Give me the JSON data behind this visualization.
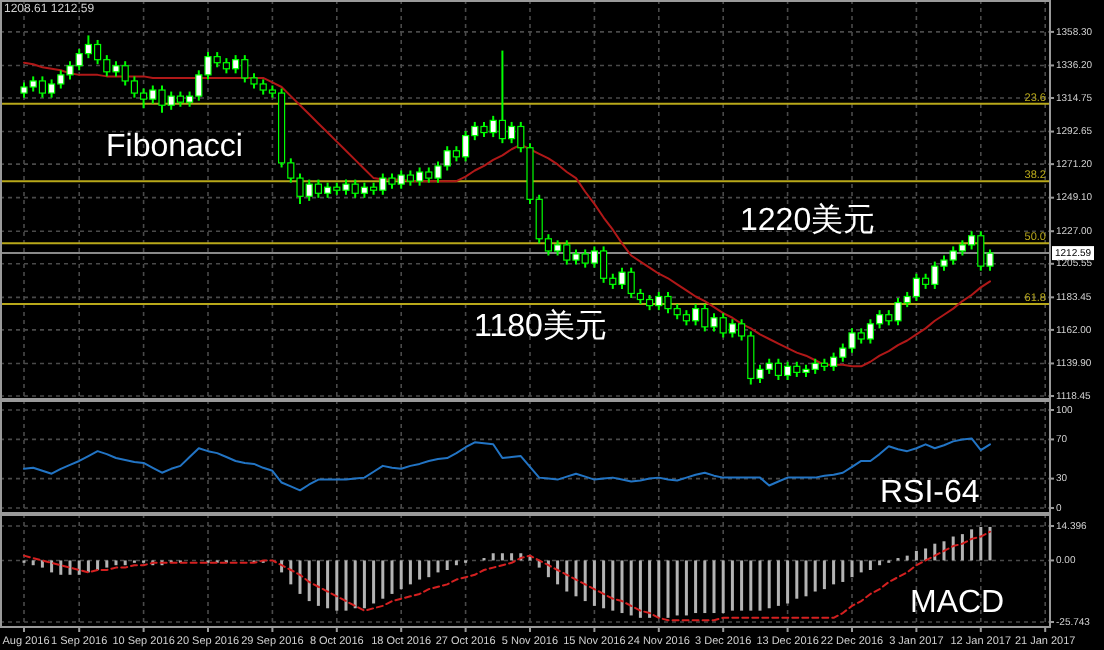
{
  "chart_data": [
    {
      "type": "candlestick",
      "color": "#00ff00",
      "ohlc": [
        [
          1318,
          1325,
          1315,
          1322
        ],
        [
          1322,
          1329,
          1319,
          1326
        ],
        [
          1326,
          1329,
          1315,
          1318
        ],
        [
          1318,
          1327,
          1315,
          1324
        ],
        [
          1324,
          1333,
          1321,
          1330
        ],
        [
          1330,
          1339,
          1327,
          1336
        ],
        [
          1336,
          1347,
          1333,
          1344
        ],
        [
          1344,
          1356,
          1341,
          1350
        ],
        [
          1350,
          1353,
          1337,
          1340
        ],
        [
          1340,
          1343,
          1329,
          1332
        ],
        [
          1332,
          1339,
          1329,
          1336
        ],
        [
          1336,
          1339,
          1323,
          1326
        ],
        [
          1326,
          1329,
          1315,
          1318
        ],
        [
          1318,
          1321,
          1308,
          1314
        ],
        [
          1314,
          1323,
          1311,
          1320
        ],
        [
          1320,
          1323,
          1305,
          1310
        ],
        [
          1310,
          1319,
          1307,
          1316
        ],
        [
          1316,
          1319,
          1309,
          1312
        ],
        [
          1312,
          1319,
          1309,
          1316
        ],
        [
          1316,
          1333,
          1313,
          1330
        ],
        [
          1330,
          1345,
          1327,
          1342
        ],
        [
          1342,
          1345,
          1335,
          1338
        ],
        [
          1338,
          1341,
          1331,
          1334
        ],
        [
          1334,
          1343,
          1331,
          1340
        ],
        [
          1340,
          1343,
          1325,
          1328
        ],
        [
          1328,
          1331,
          1321,
          1324
        ],
        [
          1324,
          1327,
          1317,
          1320
        ],
        [
          1320,
          1323,
          1315,
          1318
        ],
        [
          1318,
          1321,
          1269,
          1272
        ],
        [
          1272,
          1275,
          1259,
          1262
        ],
        [
          1262,
          1265,
          1245,
          1250
        ],
        [
          1250,
          1261,
          1247,
          1258
        ],
        [
          1258,
          1261,
          1249,
          1252
        ],
        [
          1252,
          1259,
          1249,
          1256
        ],
        [
          1256,
          1259,
          1251,
          1254
        ],
        [
          1254,
          1261,
          1251,
          1258
        ],
        [
          1258,
          1261,
          1249,
          1252
        ],
        [
          1252,
          1259,
          1249,
          1256
        ],
        [
          1256,
          1259,
          1251,
          1254
        ],
        [
          1254,
          1265,
          1251,
          1262
        ],
        [
          1262,
          1265,
          1255,
          1258
        ],
        [
          1258,
          1267,
          1255,
          1264
        ],
        [
          1264,
          1267,
          1257,
          1260
        ],
        [
          1260,
          1269,
          1257,
          1266
        ],
        [
          1266,
          1269,
          1259,
          1262
        ],
        [
          1262,
          1273,
          1259,
          1270
        ],
        [
          1270,
          1283,
          1267,
          1280
        ],
        [
          1280,
          1283,
          1273,
          1276
        ],
        [
          1276,
          1293,
          1273,
          1290
        ],
        [
          1290,
          1299,
          1287,
          1296
        ],
        [
          1296,
          1299,
          1289,
          1292
        ],
        [
          1292,
          1303,
          1289,
          1300
        ],
        [
          1300,
          1346,
          1285,
          1288
        ],
        [
          1288,
          1299,
          1285,
          1296
        ],
        [
          1296,
          1299,
          1279,
          1282
        ],
        [
          1282,
          1285,
          1245,
          1248
        ],
        [
          1248,
          1251,
          1219,
          1222
        ],
        [
          1222,
          1225,
          1211,
          1214
        ],
        [
          1214,
          1221,
          1211,
          1218
        ],
        [
          1218,
          1221,
          1205,
          1208
        ],
        [
          1208,
          1215,
          1205,
          1212
        ],
        [
          1212,
          1215,
          1203,
          1206
        ],
        [
          1206,
          1217,
          1203,
          1214
        ],
        [
          1214,
          1217,
          1193,
          1196
        ],
        [
          1196,
          1199,
          1189,
          1192
        ],
        [
          1192,
          1203,
          1189,
          1200
        ],
        [
          1200,
          1203,
          1183,
          1186
        ],
        [
          1186,
          1189,
          1179,
          1182
        ],
        [
          1182,
          1185,
          1175,
          1178
        ],
        [
          1178,
          1187,
          1175,
          1184
        ],
        [
          1184,
          1187,
          1173,
          1176
        ],
        [
          1176,
          1179,
          1169,
          1172
        ],
        [
          1172,
          1175,
          1165,
          1168
        ],
        [
          1168,
          1179,
          1165,
          1176
        ],
        [
          1176,
          1179,
          1161,
          1164
        ],
        [
          1164,
          1173,
          1161,
          1170
        ],
        [
          1170,
          1173,
          1157,
          1160
        ],
        [
          1160,
          1169,
          1157,
          1166
        ],
        [
          1166,
          1169,
          1155,
          1158
        ],
        [
          1158,
          1161,
          1126,
          1130
        ],
        [
          1130,
          1139,
          1127,
          1136
        ],
        [
          1136,
          1143,
          1133,
          1140
        ],
        [
          1140,
          1143,
          1129,
          1132
        ],
        [
          1132,
          1141,
          1129,
          1138
        ],
        [
          1138,
          1141,
          1131,
          1134
        ],
        [
          1134,
          1139,
          1131,
          1136
        ],
        [
          1136,
          1143,
          1133,
          1140
        ],
        [
          1140,
          1143,
          1135,
          1138
        ],
        [
          1138,
          1147,
          1135,
          1144
        ],
        [
          1144,
          1153,
          1141,
          1150
        ],
        [
          1150,
          1163,
          1147,
          1160
        ],
        [
          1160,
          1163,
          1153,
          1156
        ],
        [
          1156,
          1169,
          1153,
          1166
        ],
        [
          1166,
          1175,
          1163,
          1172
        ],
        [
          1172,
          1175,
          1165,
          1168
        ],
        [
          1168,
          1183,
          1165,
          1180
        ],
        [
          1180,
          1187,
          1177,
          1184
        ],
        [
          1184,
          1199,
          1181,
          1196
        ],
        [
          1196,
          1199,
          1189,
          1192
        ],
        [
          1192,
          1207,
          1189,
          1204
        ],
        [
          1204,
          1211,
          1201,
          1208
        ],
        [
          1208,
          1217,
          1205,
          1214
        ],
        [
          1214,
          1221,
          1211,
          1218
        ],
        [
          1218,
          1227,
          1215,
          1224
        ],
        [
          1224,
          1227,
          1201,
          1204
        ],
        [
          1204,
          1215,
          1201,
          1212.59
        ],
        null,
        null,
        null,
        null,
        null,
        null
      ],
      "series": [
        {
          "type": "line",
          "color": "#b01818",
          "values": [
            1338,
            1337,
            1335,
            1334,
            1333,
            1331,
            1330,
            1330,
            1330,
            1329,
            1329,
            1329,
            1329,
            1329,
            1328,
            1328,
            1328,
            1328,
            1328,
            1328,
            1328,
            1328,
            1328,
            1328,
            1328,
            1328,
            1328,
            1325,
            1322,
            1316,
            1310,
            1304,
            1298,
            1292,
            1286,
            1280,
            1274,
            1268,
            1262,
            1261,
            1261,
            1261,
            1260,
            1260,
            1260,
            1260,
            1260,
            1260,
            1263,
            1267,
            1270,
            1274,
            1277,
            1281,
            1284,
            1281,
            1278,
            1275,
            1271,
            1266,
            1262,
            1253,
            1245,
            1236,
            1228,
            1219,
            1211,
            1207,
            1203,
            1199,
            1196,
            1192,
            1188,
            1184,
            1181,
            1177,
            1173,
            1170,
            1166,
            1163,
            1159,
            1156,
            1153,
            1150,
            1147,
            1145,
            1142,
            1139,
            1139,
            1139,
            1138,
            1138,
            1141,
            1145,
            1148,
            1152,
            1155,
            1159,
            1163,
            1168,
            1172,
            1176,
            1181,
            1185,
            1190,
            1194,
            null,
            null,
            null,
            null,
            null,
            null
          ]
        }
      ],
      "ylim": [
        1118.45,
        1378
      ],
      "yticks": [
        1118.45,
        {
          "value": 1139.9,
          "label": "1139.90"
        },
        {
          "value": 1162,
          "label": "1162.00"
        },
        1183.45,
        1205.55,
        {
          "value": 1227,
          "label": "1227.00"
        },
        {
          "value": 1249.1,
          "label": "1249.10"
        },
        {
          "value": 1271.2,
          "label": "1271.20"
        },
        1292.65,
        1314.75,
        {
          "value": 1336.2,
          "label": "1336.20"
        },
        {
          "value": 1358.3,
          "label": "1358.30"
        }
      ],
      "ref_lines": [
        {
          "axis": "y",
          "value": 1311,
          "color": "#b8a81a"
        },
        {
          "axis": "y",
          "value": 1260,
          "color": "#b8a81a"
        },
        {
          "axis": "y",
          "value": 1219,
          "color": "#b8a81a"
        },
        {
          "axis": "y",
          "value": 1179,
          "color": "#b8a81a"
        },
        {
          "axis": "y",
          "value": 1212.59,
          "label": "1212.59",
          "color": "#8a8a8a"
        }
      ],
      "annotations": [
        "1208.61 1212.59",
        "Fibonacci",
        "1220美元",
        "1180美元",
        {
          "text": "23.6",
          "y": 1311
        },
        {
          "text": "38.2",
          "y": 1260
        },
        {
          "text": "50.0",
          "y": 1219
        },
        {
          "text": "61.8",
          "y": 1179
        }
      ],
      "grid": true,
      "tick_labels": "y"
    },
    {
      "type": "line",
      "series": [
        {
          "color": "#2274c4",
          "values": [
            40,
            41,
            38,
            35,
            40,
            44,
            48,
            53,
            58,
            55,
            51,
            49,
            47,
            46,
            41,
            36,
            40,
            43,
            52,
            61,
            58,
            56,
            52,
            48,
            46,
            45,
            41,
            38,
            26,
            22,
            18,
            24,
            29,
            29,
            29,
            29,
            30,
            31,
            37,
            43,
            41,
            40,
            43,
            45,
            48,
            50,
            51,
            56,
            62,
            67,
            66,
            65,
            51,
            52,
            53,
            42,
            31,
            30,
            29,
            32,
            35,
            32,
            29,
            30,
            31,
            29,
            27,
            28,
            30,
            31,
            29,
            28,
            31,
            34,
            36,
            33,
            31,
            31,
            31,
            31,
            31,
            23,
            27,
            31,
            31,
            31,
            31,
            33,
            34,
            36,
            42,
            48,
            48,
            55,
            63,
            60,
            58,
            61,
            65,
            61,
            64,
            68,
            70,
            71,
            59,
            65,
            null,
            null,
            null,
            null,
            null,
            null
          ]
        }
      ],
      "ylim": [
        0,
        100
      ],
      "yticks": [
        0,
        30,
        70,
        100
      ],
      "annotations": [
        "RSI-64"
      ],
      "grid": true,
      "tick_labels": "y"
    },
    {
      "type": "bar",
      "categories": [
        "Aug 2016",
        null,
        null,
        null,
        null,
        null,
        "1 Sep 2016",
        null,
        null,
        null,
        null,
        null,
        null,
        "10 Sep 2016",
        null,
        null,
        null,
        null,
        null,
        null,
        "20 Sep 2016",
        null,
        null,
        null,
        null,
        null,
        null,
        "29 Sep 2016",
        null,
        null,
        null,
        null,
        null,
        null,
        "8 Oct 2016",
        null,
        null,
        null,
        null,
        null,
        null,
        "18 Oct 2016",
        null,
        null,
        null,
        null,
        null,
        null,
        "27 Oct 2016",
        null,
        null,
        null,
        null,
        null,
        null,
        "5 Nov 2016",
        null,
        null,
        null,
        null,
        null,
        null,
        "15 Nov 2016",
        null,
        null,
        null,
        null,
        null,
        null,
        "24 Nov 2016",
        null,
        null,
        null,
        null,
        null,
        null,
        "3 Dec 2016",
        null,
        null,
        null,
        null,
        null,
        null,
        "13 Dec 2016",
        null,
        null,
        null,
        null,
        null,
        null,
        "22 Dec 2016",
        null,
        null,
        null,
        null,
        null,
        null,
        "3 Jan 2017",
        null,
        null,
        null,
        null,
        null,
        null,
        "12 Jan 2017",
        null,
        null,
        null,
        null,
        null,
        null,
        "21 Jan 2017"
      ],
      "series": [
        {
          "color": "#b4b4b4",
          "values": [
            -1,
            -2,
            -3,
            -5,
            -6,
            -6,
            -6,
            -5,
            -4,
            -3,
            -2,
            -2,
            -1,
            -1,
            -2,
            -2,
            -1,
            -1,
            0,
            0,
            -1,
            -1,
            -1,
            0,
            0,
            -1,
            -1,
            0,
            -5,
            -10,
            -14,
            -17,
            -19,
            -20,
            -21,
            -21,
            -20,
            -20,
            -18,
            -16,
            -14,
            -12,
            -10,
            -8,
            -7,
            -5,
            -4,
            -2,
            -1,
            0,
            1,
            3,
            3,
            3,
            3,
            2,
            -3,
            -7,
            -10,
            -13,
            -15,
            -17,
            -19,
            -20,
            -21,
            -22,
            -23,
            -24,
            -24,
            -24,
            -24,
            -23,
            -23,
            -22,
            -22,
            -22,
            -22,
            -21,
            -21,
            -21,
            -21,
            -20,
            -19,
            -18,
            -16,
            -15,
            -13,
            -12,
            -10,
            -9,
            -7,
            -5,
            -4,
            -2,
            -1,
            1,
            2,
            4,
            5,
            7,
            8,
            10,
            11,
            13,
            14,
            14,
            null,
            null,
            null,
            null,
            null,
            null
          ]
        },
        {
          "type": "line",
          "color": "#d42020",
          "line_style": "dashed",
          "values": [
            2,
            1,
            0,
            -1,
            -2,
            -3,
            -4,
            -5,
            -4,
            -4,
            -3,
            -3,
            -2,
            -2,
            -1,
            -1,
            -1,
            -1,
            -1,
            -1,
            -1,
            -1,
            -1,
            -1,
            -1,
            -1,
            0,
            0,
            -2,
            -4,
            -6,
            -9,
            -11,
            -13,
            -15,
            -17,
            -19,
            -21,
            -20,
            -19,
            -17,
            -16,
            -15,
            -14,
            -12,
            -11,
            -10,
            -8,
            -7,
            -6,
            -4,
            -3,
            -2,
            -1,
            1,
            2,
            0,
            -2,
            -4,
            -6,
            -8,
            -10,
            -12,
            -14,
            -16,
            -17,
            -19,
            -21,
            -22,
            -24,
            -25,
            -25,
            -25,
            -25,
            -25,
            -25,
            -24,
            -24,
            -24,
            -24,
            -24,
            -24,
            -24,
            -24,
            -24,
            -24,
            -24,
            -24,
            -24,
            -22,
            -19,
            -17,
            -14,
            -12,
            -9,
            -7,
            -5,
            -2,
            0,
            2,
            4,
            6,
            7,
            9,
            10,
            12,
            null,
            null,
            null,
            null,
            null,
            null
          ]
        }
      ],
      "ylim": [
        -25.743,
        14.396
      ],
      "yticks": [
        -25.743,
        {
          "value": 0,
          "label": "0.00"
        },
        14.396
      ],
      "annotations": [
        "MACD"
      ],
      "grid": true
    }
  ]
}
